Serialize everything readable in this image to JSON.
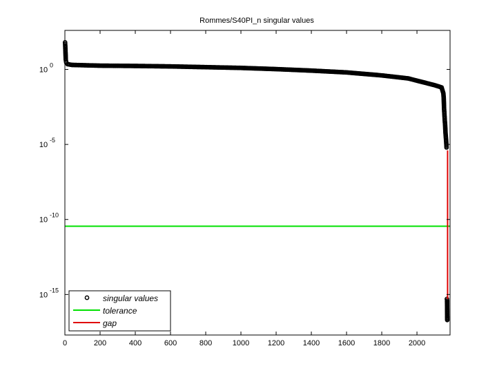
{
  "chart_data": {
    "type": "scatter",
    "title": "Rommes/S40PI_n singular values",
    "xlabel": "",
    "ylabel": "",
    "xlim": [
      0,
      2188
    ],
    "ylim_log10": [
      -17.7,
      2.6
    ],
    "yscale": "log",
    "grid": false,
    "legend_position": "lower left",
    "x_ticks": [
      0,
      200,
      400,
      600,
      800,
      1000,
      1200,
      1400,
      1600,
      1800,
      2000
    ],
    "y_ticks": [
      {
        "exp": 0,
        "label": "10",
        "sup": "0"
      },
      {
        "exp": -5,
        "label": "10",
        "sup": "-5"
      },
      {
        "exp": -10,
        "label": "10",
        "sup": "-10"
      },
      {
        "exp": -15,
        "label": "10",
        "sup": "-15"
      }
    ],
    "series": [
      {
        "name": "singular values",
        "kind": "markers",
        "marker": "circle-open",
        "color": "#000000",
        "points_log10": [
          [
            1,
            1.8
          ],
          [
            2,
            1.6
          ],
          [
            3,
            1.3
          ],
          [
            4,
            1.0
          ],
          [
            5,
            0.65
          ],
          [
            8,
            0.45
          ],
          [
            15,
            0.35
          ],
          [
            40,
            0.3
          ],
          [
            100,
            0.28
          ],
          [
            200,
            0.25
          ],
          [
            400,
            0.23
          ],
          [
            600,
            0.2
          ],
          [
            800,
            0.15
          ],
          [
            1000,
            0.1
          ],
          [
            1200,
            0.02
          ],
          [
            1400,
            -0.08
          ],
          [
            1600,
            -0.2
          ],
          [
            1800,
            -0.4
          ],
          [
            1950,
            -0.6
          ],
          [
            2050,
            -0.9
          ],
          [
            2100,
            -1.05
          ],
          [
            2140,
            -1.2
          ],
          [
            2150,
            -1.6
          ],
          [
            2152,
            -1.9
          ],
          [
            2154,
            -2.6
          ],
          [
            2156,
            -3.0
          ],
          [
            2158,
            -3.4
          ],
          [
            2160,
            -3.7
          ],
          [
            2162,
            -4.2
          ],
          [
            2164,
            -4.5
          ],
          [
            2166,
            -4.8
          ],
          [
            2168,
            -5.2
          ],
          [
            2170,
            -15.3
          ],
          [
            2171,
            -15.4
          ],
          [
            2172,
            -16.7
          ]
        ]
      },
      {
        "name": "tolerance",
        "kind": "hline",
        "color": "#00e000",
        "y_log10": -10.45
      },
      {
        "name": "gap",
        "kind": "vline",
        "color": "#e00000",
        "x": 2174,
        "y_from_log10": -5.4,
        "y_to_log10": -15.3
      }
    ]
  }
}
